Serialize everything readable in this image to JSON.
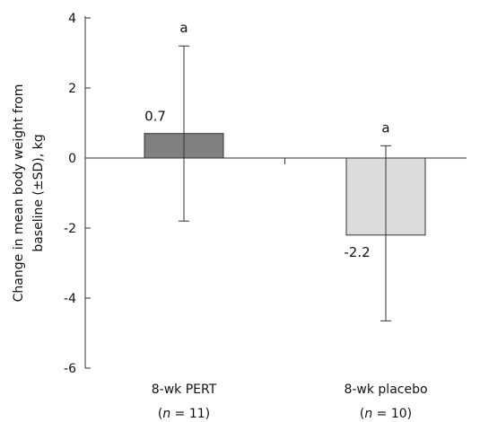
{
  "chart_data": {
    "type": "bar",
    "title": "",
    "ylabel_lines": [
      "Change in mean body weight from",
      "baseline (±SD), kg"
    ],
    "ylim": [
      -6,
      4
    ],
    "yticks": [
      4,
      2,
      0,
      -2,
      -4,
      -6
    ],
    "ytick_labels": [
      "4",
      "2",
      "0",
      "-2",
      "-4",
      "-6"
    ],
    "categories": [
      "8-wk PERT",
      "8-wk placebo"
    ],
    "n_values": [
      "11",
      "10"
    ],
    "n_symbol": "n",
    "n_equals": " = ",
    "values": [
      0.7,
      -2.2
    ],
    "value_labels": [
      "0.7",
      "-2.2"
    ],
    "error_low": [
      -1.8,
      -4.65
    ],
    "error_high": [
      3.2,
      0.35
    ],
    "significance": [
      "a",
      "a"
    ],
    "bar_colors": [
      "#808080",
      "#dcdcdc"
    ],
    "bar_stroke": "#333333",
    "grid": false
  }
}
